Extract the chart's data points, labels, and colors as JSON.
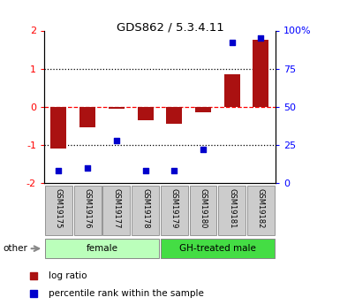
{
  "title": "GDS862 / 5.3.4.11",
  "samples": [
    "GSM19175",
    "GSM19176",
    "GSM19177",
    "GSM19178",
    "GSM19179",
    "GSM19180",
    "GSM19181",
    "GSM19182"
  ],
  "log_ratio": [
    -1.1,
    -0.55,
    -0.05,
    -0.35,
    -0.45,
    -0.15,
    0.85,
    1.75
  ],
  "percentile_rank": [
    8,
    10,
    28,
    8,
    8,
    22,
    92,
    95
  ],
  "groups": [
    {
      "label": "female",
      "start": 0,
      "end": 4,
      "color": "#bbffbb"
    },
    {
      "label": "GH-treated male",
      "start": 4,
      "end": 8,
      "color": "#44dd44"
    }
  ],
  "bar_color": "#aa1111",
  "dot_color": "#0000cc",
  "ylim_left": [
    -2,
    2
  ],
  "ylim_right": [
    0,
    100
  ],
  "yticks_left": [
    -2,
    -1,
    0,
    1,
    2
  ],
  "ytick_labels_left": [
    "-2",
    "-1",
    "0",
    "1",
    "2"
  ],
  "yticks_right": [
    0,
    25,
    50,
    75,
    100
  ],
  "ytick_labels_right": [
    "0",
    "25",
    "50",
    "75",
    "100%"
  ],
  "hlines": [
    -1,
    0,
    1
  ],
  "hline_styles": [
    "dotted",
    "dashed",
    "dotted"
  ],
  "hline_colors": [
    "black",
    "red",
    "black"
  ],
  "legend_items": [
    {
      "label": "log ratio",
      "color": "#aa1111"
    },
    {
      "label": "percentile rank within the sample",
      "color": "#0000cc"
    }
  ],
  "other_label": "other",
  "figsize": [
    3.85,
    3.45
  ],
  "dpi": 100
}
